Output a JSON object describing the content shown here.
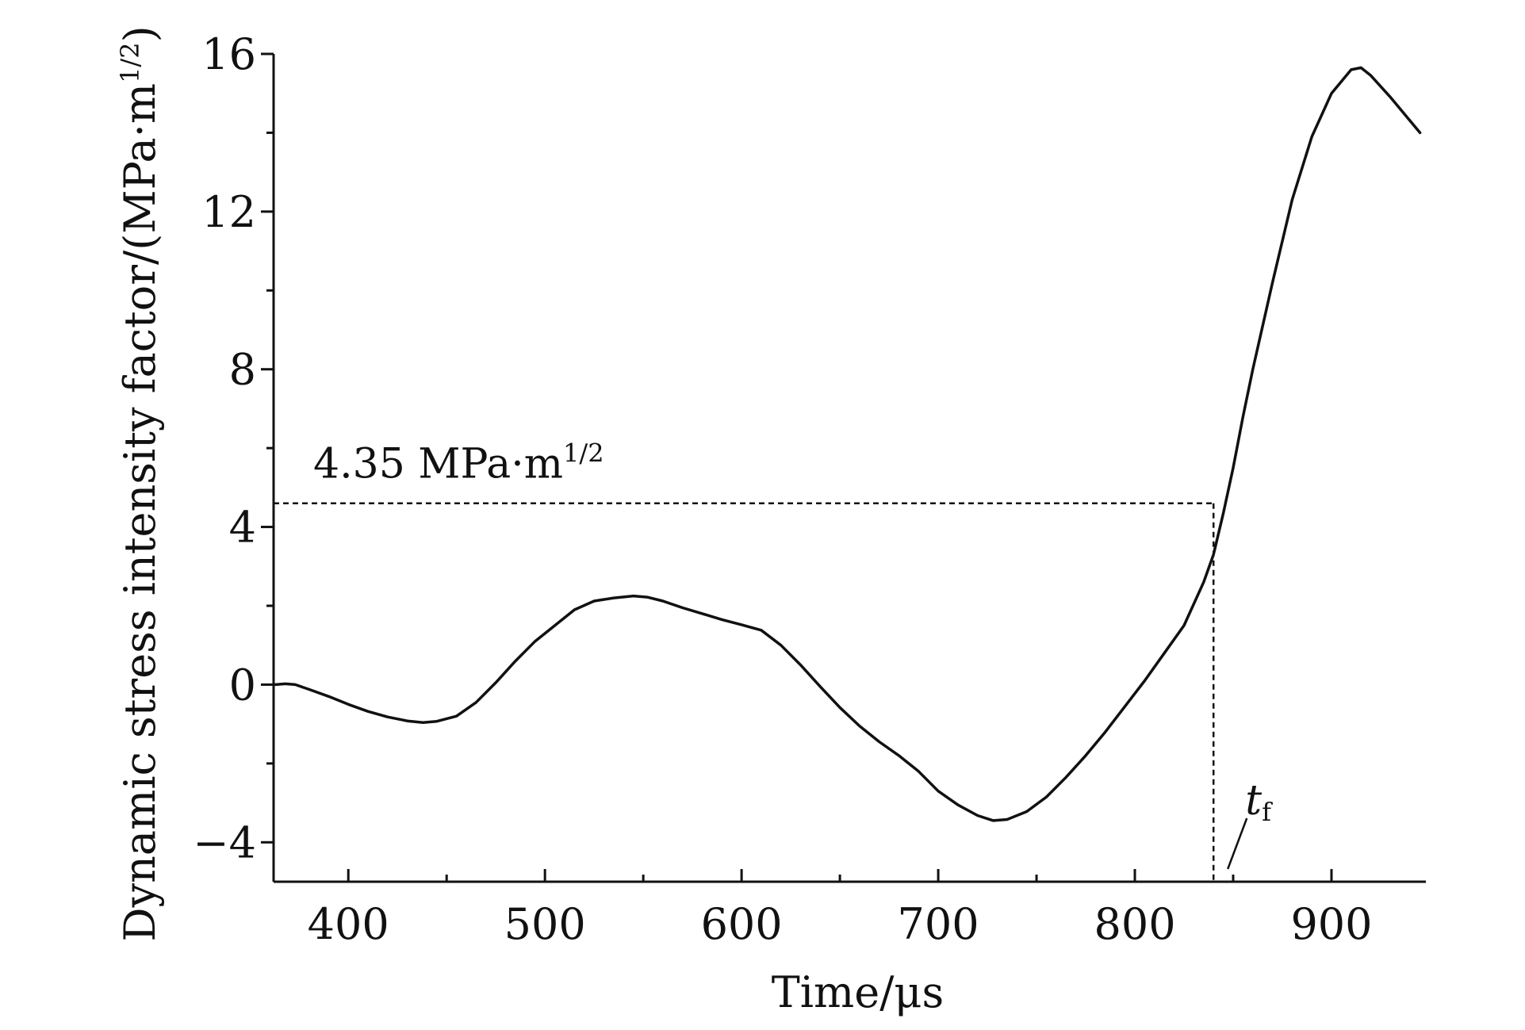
{
  "chart_data": {
    "type": "line",
    "xlabel": "Time/μs",
    "ylabel": "Dynamic stress intensity factor/(MPa·m",
    "ylabel_superscript": "1/2",
    "ylabel_close": ")",
    "xlim": [
      362,
      948
    ],
    "ylim": [
      -5,
      16
    ],
    "x_ticks": [
      400,
      500,
      600,
      700,
      800,
      900
    ],
    "x_tick_labels": [
      "400",
      "500",
      "600",
      "700",
      "800",
      "900"
    ],
    "x_minor_ticks": [
      450,
      550,
      650,
      750,
      850
    ],
    "y_ticks": [
      -4,
      0,
      4,
      8,
      12,
      16
    ],
    "y_tick_labels": [
      "−4",
      "0",
      "4",
      "8",
      "12",
      "16"
    ],
    "y_minor_ticks": [
      -2,
      2,
      6,
      10,
      14
    ],
    "grid": false,
    "series": [
      {
        "x": [
          363,
          368,
          373,
          380,
          390,
          400,
          410,
          420,
          430,
          438,
          445,
          455,
          465,
          475,
          485,
          495,
          505,
          515,
          525,
          535,
          545,
          552,
          560,
          570,
          580,
          590,
          600,
          610,
          620,
          630,
          640,
          650,
          660,
          670,
          680,
          690,
          700,
          710,
          720,
          728,
          735,
          745,
          755,
          765,
          775,
          785,
          795,
          805,
          815,
          825,
          835,
          840,
          845,
          850,
          855,
          860,
          870,
          880,
          890,
          900,
          910,
          915,
          920,
          930,
          945
        ],
        "y": [
          0.0,
          0.02,
          0.0,
          -0.12,
          -0.3,
          -0.5,
          -0.68,
          -0.82,
          -0.92,
          -0.96,
          -0.93,
          -0.8,
          -0.45,
          0.05,
          0.6,
          1.1,
          1.5,
          1.9,
          2.12,
          2.2,
          2.25,
          2.22,
          2.12,
          1.95,
          1.8,
          1.65,
          1.52,
          1.38,
          1.0,
          0.5,
          -0.05,
          -0.58,
          -1.05,
          -1.45,
          -1.8,
          -2.2,
          -2.7,
          -3.05,
          -3.32,
          -3.45,
          -3.42,
          -3.22,
          -2.85,
          -2.35,
          -1.8,
          -1.2,
          -0.55,
          0.1,
          0.8,
          1.5,
          2.6,
          3.3,
          4.35,
          5.5,
          6.8,
          8.0,
          10.2,
          12.3,
          13.9,
          15.0,
          15.6,
          15.65,
          15.45,
          14.9,
          14.0
        ]
      }
    ],
    "annotations": {
      "threshold_label": "4.35 MPa·m",
      "threshold_label_superscript": "1/2",
      "threshold_y": 4.6,
      "tf_label": "t",
      "tf_subscript": "f",
      "tf_x": 840
    }
  }
}
